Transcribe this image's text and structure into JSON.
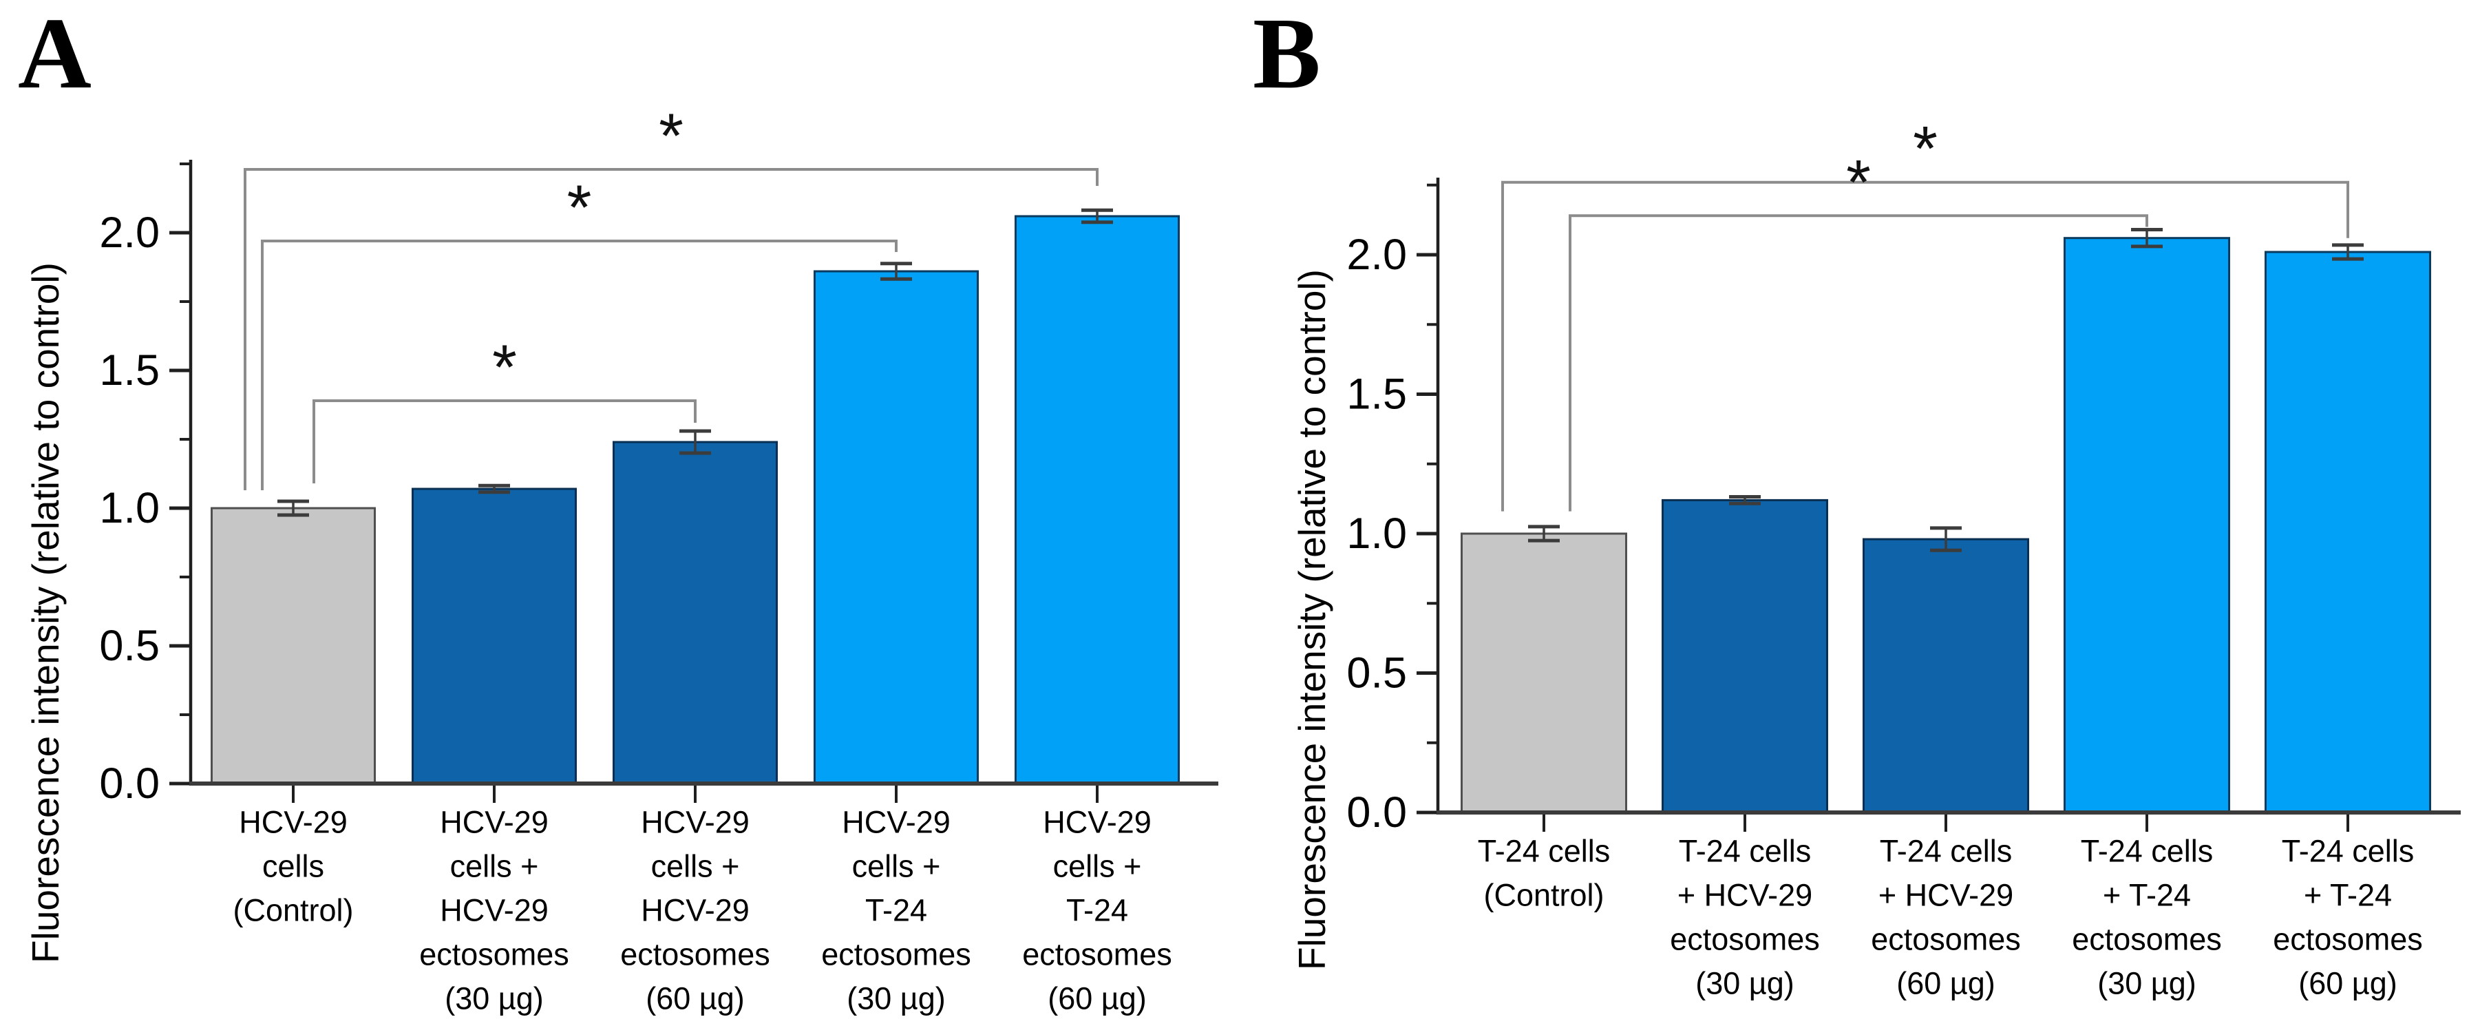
{
  "figure": {
    "background": "#ffffff",
    "panels": [
      {
        "letter": "A",
        "y_axis_label": "Fluorescence intensity (relative to control)"
      },
      {
        "letter": "B",
        "y_axis_label": "Fluorescence intensity (relative to control)"
      }
    ]
  },
  "colors": {
    "control_fill": "#c6c6c6",
    "control_stroke": "#4f4f4f",
    "dark_blue_fill": "#0f63a9",
    "dark_blue_stroke": "#092f52",
    "light_blue_fill": "#00a1f7",
    "light_blue_stroke": "#0a3a5e",
    "axis": "#1f1f1f",
    "baseline": "#3b3b3b",
    "bracket": "#8c8c8c",
    "error_bar": "#3c3c3c",
    "significance_star": "#111111",
    "text": "#000000"
  },
  "chart_data": [
    {
      "type": "bar",
      "panel": "A",
      "ylabel": "Fluorescence intensity (relative to control)",
      "ylim": [
        0.0,
        2.28
      ],
      "yticks": [
        0.0,
        0.5,
        1.0,
        1.5,
        2.0
      ],
      "ytick_labels": [
        "0.0",
        "0.5",
        "1.0",
        "1.5",
        "2.0"
      ],
      "minor_yticks": [
        0.25,
        0.75,
        1.25,
        1.75,
        2.25
      ],
      "grid": false,
      "legend": "none",
      "categories": [
        "HCV-29 cells (Control)",
        "HCV-29 cells + HCV-29 ectosomes (30 µg)",
        "HCV-29 cells + HCV-29 ectosomes (60 µg)",
        "HCV-29 cells + T-24 ectosomes (30 µg)",
        "HCV-29 cells + T-24 ectosomes (60 µg)"
      ],
      "categories_multiline": [
        [
          "HCV-29",
          "cells",
          "(Control)"
        ],
        [
          "HCV-29",
          "cells +",
          "HCV-29",
          "ectosomes",
          "(30 µg)"
        ],
        [
          "HCV-29",
          "cells +",
          "HCV-29",
          "ectosomes",
          "(60 µg)"
        ],
        [
          "HCV-29",
          "cells +",
          "T-24",
          "ectosomes",
          "(30 µg)"
        ],
        [
          "HCV-29",
          "cells +",
          "T-24",
          "ectosomes",
          "(60 µg)"
        ]
      ],
      "values": [
        1.0,
        1.07,
        1.24,
        1.86,
        2.06
      ],
      "errors": [
        0.025,
        0.012,
        0.04,
        0.028,
        0.022
      ],
      "bar_color_keys": [
        "control",
        "dark_blue",
        "dark_blue",
        "light_blue",
        "light_blue"
      ],
      "significance": [
        {
          "from": 0,
          "to": 4,
          "label": "*",
          "level": 2.23,
          "left_nudge": -70,
          "left_drop_to": 1.065,
          "right_drop_to": 2.17
        },
        {
          "from": 0,
          "to": 3,
          "label": "*",
          "level": 1.97,
          "left_nudge": -45,
          "left_drop_to": 1.065,
          "right_drop_to": 1.93
        },
        {
          "from": 0,
          "to": 2,
          "label": "*",
          "level": 1.39,
          "left_nudge": 30,
          "left_drop_to": 1.09,
          "right_drop_to": 1.31
        }
      ]
    },
    {
      "type": "bar",
      "panel": "B",
      "ylabel": "Fluorescence intensity (relative to control)",
      "ylim": [
        0.0,
        2.28
      ],
      "yticks": [
        0.0,
        0.5,
        1.0,
        1.5,
        2.0
      ],
      "ytick_labels": [
        "0.0",
        "0.5",
        "1.0",
        "1.5",
        "2.0"
      ],
      "minor_yticks": [
        0.25,
        0.75,
        1.25,
        1.75,
        2.25
      ],
      "grid": false,
      "legend": "none",
      "categories": [
        "T-24 cells (Control)",
        "T-24 cells + HCV-29 ectosomes (30 µg)",
        "T-24 cells + HCV-29 ectosomes (60 µg)",
        "T-24 cells + T-24 ectosomes (30 µg)",
        "T-24 cells + T-24 ectosomes (60 µg)"
      ],
      "categories_multiline": [
        [
          "T-24 cells",
          "(Control)"
        ],
        [
          "T-24 cells",
          "+ HCV-29",
          "ectosomes",
          "(30 µg)"
        ],
        [
          "T-24 cells",
          "+ HCV-29",
          "ectosomes",
          "(60 µg)"
        ],
        [
          "T-24 cells",
          "+ T-24",
          "ectosomes",
          "(30 µg)"
        ],
        [
          "T-24 cells",
          "+ T-24",
          "ectosomes",
          "(60 µg)"
        ]
      ],
      "values": [
        1.0,
        1.12,
        0.98,
        2.06,
        2.01
      ],
      "errors": [
        0.025,
        0.012,
        0.04,
        0.03,
        0.025
      ],
      "bar_color_keys": [
        "control",
        "dark_blue",
        "dark_blue",
        "light_blue",
        "light_blue"
      ],
      "significance": [
        {
          "from": 0,
          "to": 4,
          "label": "*",
          "level": 2.26,
          "left_nudge": -60,
          "left_drop_to": 1.08,
          "right_drop_to": 2.06
        },
        {
          "from": 0,
          "to": 3,
          "label": "*",
          "level": 2.14,
          "left_nudge": 38,
          "left_drop_to": 1.08,
          "right_drop_to": 2.1
        }
      ]
    }
  ]
}
